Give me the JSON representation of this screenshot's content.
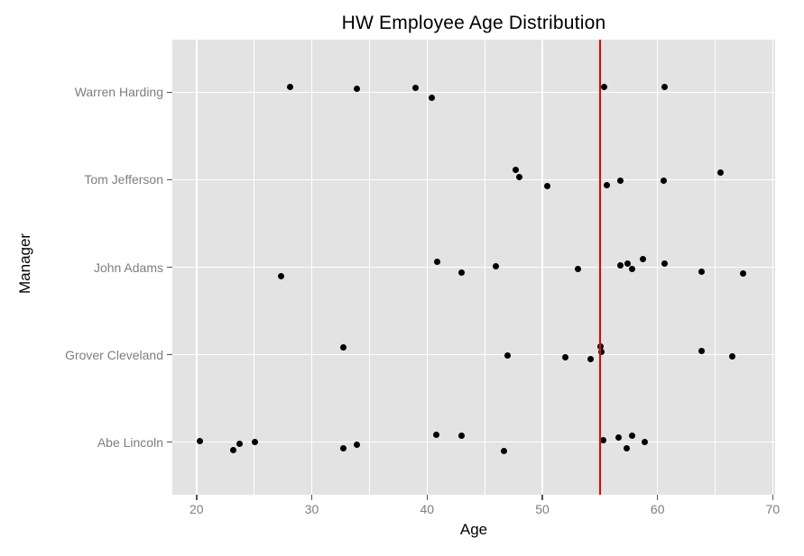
{
  "title": "HW Employee Age Distribution",
  "colors": {
    "panel_bg": "#e3e3e3",
    "grid": "#ffffff",
    "point": "#000000",
    "reference_line": "#ee0000",
    "axis_text": "#7e7e7e",
    "axis_title": "#000000",
    "tick_mark": "#555555"
  },
  "chart_data": {
    "type": "scatter",
    "title": "HW Employee Age Distribution",
    "xlabel": "Age",
    "ylabel": "Manager",
    "xlim": [
      17.9,
      70.2
    ],
    "x_major_ticks": [
      20,
      30,
      40,
      50,
      60,
      70
    ],
    "x_minor_gridlines": [
      25,
      35,
      45,
      55,
      65
    ],
    "grid": "on",
    "legend_position": "none",
    "reference_line_x": 55,
    "categories_top_to_bottom": [
      "Warren Harding",
      "Tom Jefferson",
      "John Adams",
      "Grover Cleveland",
      "Abe Lincoln"
    ],
    "series": [
      {
        "name": "Warren Harding",
        "points": [
          {
            "age": 28.1,
            "dy": -5.5
          },
          {
            "age": 33.9,
            "dy": -4
          },
          {
            "age": 39.0,
            "dy": -4.5
          },
          {
            "age": 40.4,
            "dy": 6
          },
          {
            "age": 55.4,
            "dy": -5.5
          },
          {
            "age": 60.6,
            "dy": -5.5
          }
        ]
      },
      {
        "name": "Tom Jefferson",
        "points": [
          {
            "age": 47.7,
            "dy": -11
          },
          {
            "age": 48.0,
            "dy": -2.5
          },
          {
            "age": 50.4,
            "dy": 7.5
          },
          {
            "age": 55.6,
            "dy": 6
          },
          {
            "age": 56.8,
            "dy": 1.5
          },
          {
            "age": 60.5,
            "dy": 1.5
          },
          {
            "age": 65.5,
            "dy": -8
          }
        ]
      },
      {
        "name": "John Adams",
        "points": [
          {
            "age": 27.3,
            "dy": 9.5
          },
          {
            "age": 40.9,
            "dy": -6
          },
          {
            "age": 43.0,
            "dy": 6
          },
          {
            "age": 46.0,
            "dy": -1.5
          },
          {
            "age": 53.1,
            "dy": 2
          },
          {
            "age": 56.8,
            "dy": -2
          },
          {
            "age": 57.4,
            "dy": -4
          },
          {
            "age": 57.8,
            "dy": 1.5
          },
          {
            "age": 58.7,
            "dy": -9
          },
          {
            "age": 60.6,
            "dy": -4
          },
          {
            "age": 63.8,
            "dy": 5
          },
          {
            "age": 67.4,
            "dy": 7
          }
        ]
      },
      {
        "name": "Grover Cleveland",
        "points": [
          {
            "age": 32.7,
            "dy": -8.5
          },
          {
            "age": 47.0,
            "dy": 0.5
          },
          {
            "age": 52.0,
            "dy": 3
          },
          {
            "age": 54.2,
            "dy": 4.5
          },
          {
            "age": 55.05,
            "dy": -9.5
          },
          {
            "age": 55.1,
            "dy": -3
          },
          {
            "age": 63.8,
            "dy": -4
          },
          {
            "age": 66.5,
            "dy": 2
          }
        ]
      },
      {
        "name": "Abe Lincoln",
        "points": [
          {
            "age": 20.3,
            "dy": -1.5
          },
          {
            "age": 23.2,
            "dy": 9
          },
          {
            "age": 23.7,
            "dy": 2
          },
          {
            "age": 25.1,
            "dy": -0.5
          },
          {
            "age": 32.7,
            "dy": 7
          },
          {
            "age": 33.9,
            "dy": 3
          },
          {
            "age": 40.8,
            "dy": -8.5
          },
          {
            "age": 43.0,
            "dy": -7.5
          },
          {
            "age": 46.7,
            "dy": 9.5
          },
          {
            "age": 55.3,
            "dy": -2
          },
          {
            "age": 56.6,
            "dy": -5.5
          },
          {
            "age": 57.3,
            "dy": 7
          },
          {
            "age": 57.8,
            "dy": -7.5
          },
          {
            "age": 58.9,
            "dy": -0.5
          }
        ]
      }
    ]
  }
}
